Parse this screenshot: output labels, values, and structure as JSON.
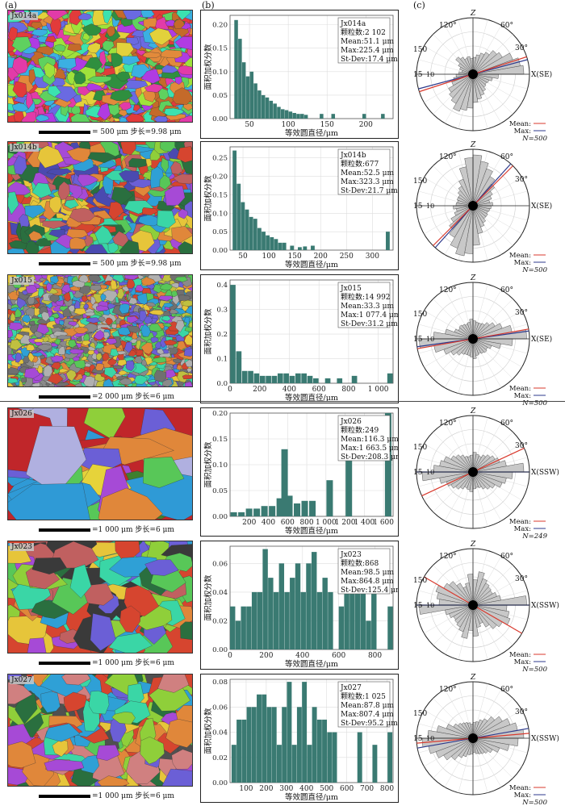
{
  "panel_labels": {
    "a": "(a)",
    "b": "(b)",
    "c": "(c)"
  },
  "hist_axis": {
    "ylabel": "面积加权分数",
    "xlabel": "等效圆直径/μm"
  },
  "rose_labels": {
    "z": "Z",
    "deg120": "120°",
    "deg60": "60°",
    "deg30": "30°",
    "r150": "150",
    "r15": "15",
    "r10": "10",
    "mean": "Mean:",
    "max": "Max:"
  },
  "chart_data": [
    {
      "type": "bar",
      "sample": "Jx014a",
      "stats": [
        "Jx014a",
        "颗粒数:2 102",
        "Mean:51.1 μm",
        "Max:225.4 μm",
        "St-Dev:17.4 μm"
      ],
      "xlim": [
        25,
        235
      ],
      "ylim": [
        0,
        0.22
      ],
      "xticks": [
        50,
        100,
        150,
        200
      ],
      "xtick_labels": [
        "50",
        "100",
        "150",
        "200"
      ],
      "yticks": [
        0,
        0.05,
        0.1,
        0.15,
        0.2
      ],
      "ytick_labels": [
        "0.00",
        "0.05",
        "0.10",
        "0.15",
        "0.20"
      ],
      "x": [
        33,
        38,
        43,
        48,
        53,
        58,
        63,
        68,
        73,
        78,
        83,
        88,
        93,
        98,
        103,
        108,
        113,
        118,
        123,
        143,
        158,
        198,
        222
      ],
      "values": [
        0.21,
        0.17,
        0.12,
        0.09,
        0.1,
        0.075,
        0.06,
        0.05,
        0.045,
        0.038,
        0.032,
        0.025,
        0.02,
        0.018,
        0.015,
        0.012,
        0.01,
        0.01,
        0.008,
        0.01,
        0.01,
        0.01,
        0.01
      ],
      "bar_width": 5,
      "scale_label": "= 500 μm  步长=9.98 μm",
      "rose": {
        "mean_angle": 18,
        "max_angle": 15,
        "n": "N=500",
        "axis": "X(SE)",
        "petals": [
          0.9,
          0.85,
          0.75,
          0.6,
          0.55,
          0.45,
          0.4,
          0.35,
          0.3,
          0.28,
          0.32,
          0.3,
          0.35,
          0.4,
          0.3,
          0.25,
          0.2,
          0.25,
          0.3,
          0.35,
          0.4,
          0.5,
          0.55,
          0.6,
          0.7,
          0.65,
          0.6,
          0.5,
          0.45,
          0.4,
          0.35,
          0.3,
          0.28,
          0.3,
          0.35,
          0.45
        ]
      }
    },
    {
      "type": "bar",
      "sample": "Jx014b",
      "stats": [
        "Jx014b",
        "颗粒数:677",
        "Mean:52.5 μm",
        "Max:323.3 μm",
        "St-Dev:21.7 μm"
      ],
      "xlim": [
        25,
        340
      ],
      "ylim": [
        0,
        0.28
      ],
      "xticks": [
        50,
        100,
        150,
        200,
        250,
        300
      ],
      "xtick_labels": [
        "50",
        "100",
        "150",
        "200",
        "250",
        "300"
      ],
      "yticks": [
        0,
        0.05,
        0.1,
        0.15,
        0.2,
        0.25
      ],
      "ytick_labels": [
        "0.00",
        "0.05",
        "0.10",
        "0.15",
        "0.20",
        "0.25"
      ],
      "x": [
        34,
        42,
        50,
        58,
        66,
        74,
        82,
        90,
        98,
        106,
        114,
        122,
        130,
        145,
        160,
        170,
        185,
        330
      ],
      "values": [
        0.27,
        0.18,
        0.13,
        0.11,
        0.09,
        0.085,
        0.06,
        0.05,
        0.04,
        0.035,
        0.03,
        0.02,
        0.02,
        0.012,
        0.008,
        0.01,
        0.012,
        0.05
      ],
      "bar_width": 8,
      "scale_label": "= 500 μm  步长=9.98 μm",
      "rose": {
        "mean_angle": 45,
        "max_angle": 48,
        "n": "N=500",
        "axis": "X(SE)",
        "petals": [
          0.35,
          0.3,
          0.35,
          0.4,
          0.5,
          0.6,
          0.7,
          0.8,
          0.9,
          0.85,
          0.7,
          0.5,
          0.4,
          0.35,
          0.3,
          0.3,
          0.28,
          0.3,
          0.35,
          0.3,
          0.35,
          0.45,
          0.55,
          0.65,
          0.8,
          0.9,
          0.85,
          0.7,
          0.5,
          0.4,
          0.35,
          0.3,
          0.3,
          0.28,
          0.3,
          0.32
        ]
      }
    },
    {
      "type": "bar",
      "sample": "Jx015",
      "stats": [
        "Jx015",
        "颗粒数:14 992",
        "Mean:33.3 μm",
        "Max:1 077.4 μm",
        "St-Dev:31.2 μm"
      ],
      "xlim": [
        0,
        1100
      ],
      "ylim": [
        0,
        0.42
      ],
      "xticks": [
        0,
        200,
        400,
        600,
        800,
        1000
      ],
      "xtick_labels": [
        "0",
        "200",
        "400",
        "600",
        "800",
        "1 000"
      ],
      "yticks": [
        0,
        0.1,
        0.2,
        0.3,
        0.4
      ],
      "ytick_labels": [
        "0.0",
        "0.1",
        "0.2",
        "0.3",
        "0.4"
      ],
      "x": [
        20,
        60,
        100,
        140,
        180,
        220,
        260,
        300,
        340,
        380,
        420,
        460,
        500,
        540,
        580,
        660,
        740,
        840,
        1080
      ],
      "values": [
        0.4,
        0.13,
        0.05,
        0.05,
        0.04,
        0.03,
        0.03,
        0.03,
        0.04,
        0.04,
        0.03,
        0.04,
        0.04,
        0.03,
        0.02,
        0.02,
        0.02,
        0.03,
        0.04
      ],
      "bar_width": 38,
      "scale_label": "=2 000 μm  步长=6 μm",
      "rose": {
        "mean_angle": 10,
        "max_angle": 8,
        "n": "N=500",
        "axis": "X(SE)",
        "petals": [
          0.95,
          0.7,
          0.55,
          0.45,
          0.38,
          0.32,
          0.3,
          0.3,
          0.32,
          0.35,
          0.3,
          0.28,
          0.3,
          0.32,
          0.3,
          0.35,
          0.5,
          0.7,
          0.95,
          0.7,
          0.55,
          0.45,
          0.38,
          0.32,
          0.3,
          0.3,
          0.32,
          0.35,
          0.3,
          0.28,
          0.3,
          0.32,
          0.3,
          0.35,
          0.5,
          0.7
        ]
      }
    },
    {
      "type": "bar",
      "sample": "Jx026",
      "stats": [
        "Jx026",
        "颗粒数:249",
        "Mean:116.3 μm",
        "Max:1 663.5 μm",
        "St-Dev:208.3 μm"
      ],
      "xlim": [
        0,
        1700
      ],
      "ylim": [
        0,
        0.2
      ],
      "xticks": [
        200,
        400,
        600,
        800,
        1000,
        1200,
        1400,
        1600
      ],
      "xtick_labels": [
        "200",
        "400",
        "600",
        "800",
        "1 000",
        "1 200",
        "1 400",
        "1 600"
      ],
      "yticks": [
        0,
        0.05,
        0.1,
        0.15,
        0.2
      ],
      "ytick_labels": [
        "0.00",
        "0.05",
        "0.10",
        "0.15",
        "0.20"
      ],
      "x": [
        40,
        120,
        200,
        280,
        360,
        440,
        520,
        570,
        620,
        700,
        780,
        860,
        1040,
        1240,
        1650
      ],
      "values": [
        0.008,
        0.008,
        0.015,
        0.015,
        0.02,
        0.02,
        0.035,
        0.13,
        0.04,
        0.025,
        0.03,
        0.03,
        0.07,
        0.11,
        0.2
      ],
      "bar_width": 70,
      "scale_label": "=1 000 μm  步长=6 μm",
      "rose": {
        "mean_angle": 25,
        "max_angle": 0,
        "n": "N=249",
        "axis": "X(SSW)",
        "petals": [
          0.9,
          0.6,
          0.5,
          0.45,
          0.4,
          0.35,
          0.3,
          0.32,
          0.35,
          0.3,
          0.28,
          0.3,
          0.35,
          0.4,
          0.45,
          0.55,
          0.6,
          0.7,
          0.9,
          0.6,
          0.5,
          0.45,
          0.4,
          0.35,
          0.3,
          0.32,
          0.35,
          0.3,
          0.28,
          0.3,
          0.35,
          0.4,
          0.45,
          0.55,
          0.6,
          0.7
        ]
      }
    },
    {
      "type": "bar",
      "sample": "Jx023",
      "stats": [
        "Jx023",
        "颗粒数:868",
        "Mean:98.5 μm",
        "Max:864.8 μm",
        "St-Dev:125.4 μm"
      ],
      "xlim": [
        0,
        900
      ],
      "ylim": [
        0,
        0.072
      ],
      "xticks": [
        0,
        200,
        400,
        600,
        800
      ],
      "xtick_labels": [
        "0",
        "200",
        "400",
        "600",
        "800"
      ],
      "yticks": [
        0,
        0.02,
        0.04,
        0.06
      ],
      "ytick_labels": [
        "0.00",
        "0.02",
        "0.04",
        "0.06"
      ],
      "x": [
        15,
        45,
        75,
        105,
        135,
        165,
        195,
        225,
        255,
        285,
        315,
        345,
        375,
        405,
        435,
        465,
        495,
        525,
        555,
        615,
        645,
        675,
        705,
        735,
        765,
        795,
        885
      ],
      "values": [
        0.03,
        0.02,
        0.03,
        0.03,
        0.04,
        0.04,
        0.07,
        0.05,
        0.04,
        0.06,
        0.04,
        0.05,
        0.06,
        0.04,
        0.06,
        0.068,
        0.04,
        0.05,
        0.04,
        0.03,
        0.04,
        0.06,
        0.07,
        0.05,
        0.02,
        0.06,
        0.03
      ],
      "bar_width": 30,
      "scale_label": "=1 000 μm  步长=6 μm",
      "rose": {
        "mean_angle": 150,
        "max_angle": 0,
        "n": "N=500",
        "axis": "X(SSW)",
        "petals": [
          0.95,
          0.5,
          0.45,
          0.4,
          0.42,
          0.45,
          0.5,
          0.6,
          0.45,
          0.55,
          0.4,
          0.35,
          0.45,
          0.55,
          0.6,
          0.7,
          0.65,
          0.6,
          0.95,
          0.5,
          0.45,
          0.4,
          0.42,
          0.45,
          0.5,
          0.6,
          0.45,
          0.55,
          0.4,
          0.35,
          0.45,
          0.55,
          0.6,
          0.7,
          0.65,
          0.6
        ]
      }
    },
    {
      "type": "bar",
      "sample": "Jx027",
      "stats": [
        "Jx027",
        "颗粒数:1 025",
        "Mean:87.8 μm",
        "Max:807.4 μm",
        "St-Dev:95.2 μm"
      ],
      "xlim": [
        20,
        830
      ],
      "ylim": [
        0,
        0.082
      ],
      "xticks": [
        100,
        200,
        300,
        400,
        500,
        600,
        700,
        800
      ],
      "xtick_labels": [
        "100",
        "200",
        "300",
        "400",
        "500",
        "600",
        "700",
        "800"
      ],
      "yticks": [
        0,
        0.02,
        0.04,
        0.06,
        0.08
      ],
      "ytick_labels": [
        "0.00",
        "0.02",
        "0.04",
        "0.06",
        "0.08"
      ],
      "x": [
        40,
        65,
        90,
        115,
        140,
        165,
        190,
        215,
        240,
        265,
        290,
        315,
        340,
        365,
        390,
        415,
        440,
        465,
        490,
        515,
        540,
        665,
        740,
        815
      ],
      "values": [
        0.03,
        0.05,
        0.05,
        0.06,
        0.06,
        0.07,
        0.07,
        0.06,
        0.06,
        0.03,
        0.06,
        0.08,
        0.03,
        0.06,
        0.08,
        0.03,
        0.06,
        0.05,
        0.05,
        0.04,
        0.04,
        0.04,
        0.03,
        0.04
      ],
      "bar_width": 25,
      "scale_label": "=1 000 μm  步长=6 μm",
      "rose": {
        "mean_angle": 5,
        "max_angle": 10,
        "n": "N=500",
        "axis": "X(SSW)",
        "petals": [
          0.9,
          0.8,
          0.7,
          0.6,
          0.5,
          0.4,
          0.35,
          0.3,
          0.28,
          0.25,
          0.28,
          0.3,
          0.32,
          0.35,
          0.4,
          0.5,
          0.65,
          0.8,
          0.9,
          0.8,
          0.7,
          0.6,
          0.5,
          0.4,
          0.35,
          0.3,
          0.28,
          0.25,
          0.28,
          0.3,
          0.32,
          0.35,
          0.4,
          0.5,
          0.65,
          0.8
        ]
      }
    }
  ],
  "colors": {
    "bar": "#3a7a72",
    "mean": "#d93a2e",
    "max": "#2e3a8c",
    "petal": "#c8c8c8"
  }
}
